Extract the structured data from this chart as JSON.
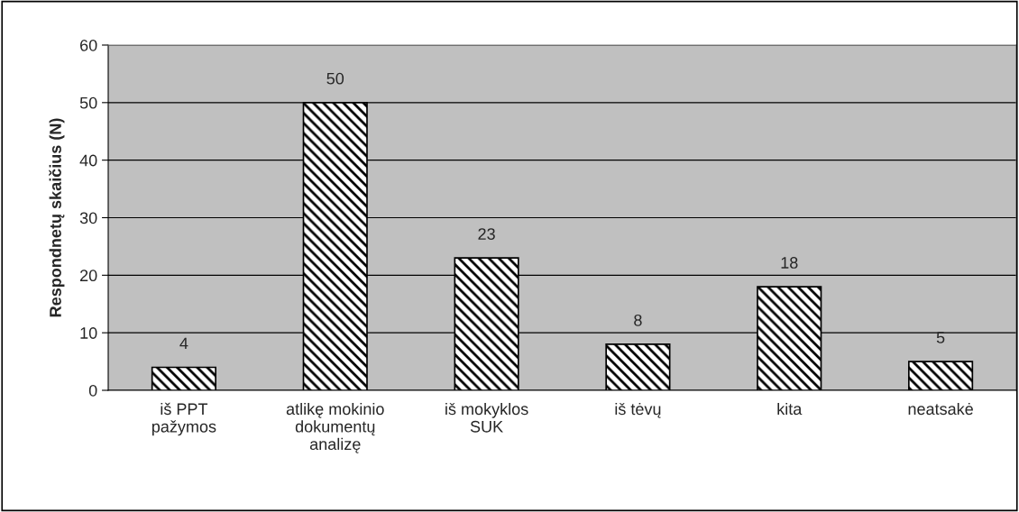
{
  "chart_data": {
    "type": "bar",
    "ylabel": "Respondnetų skaičius (N)",
    "categories": [
      "iš PPT\npažymos",
      "atlikę mokinio\ndokumentų\nanalizę",
      "iš mokyklos\nSUK",
      "iš tėvų",
      "kita",
      "neatsakė"
    ],
    "values": [
      4,
      50,
      23,
      8,
      18,
      5
    ],
    "color": "#000000",
    "ylim": [
      0,
      60
    ],
    "yticks": [
      0,
      10,
      20,
      30,
      40,
      50,
      60
    ],
    "grid": "y",
    "data_labels": true
  }
}
